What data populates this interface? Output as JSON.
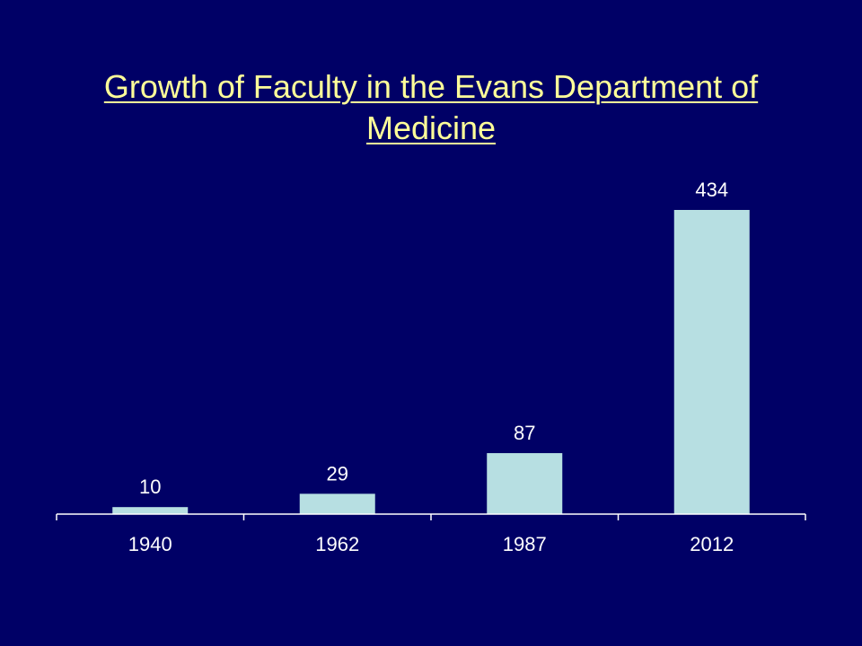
{
  "slide": {
    "background": "#000066",
    "title_color": "#ffff99"
  },
  "chart_data": {
    "type": "bar",
    "title": "Growth of Faculty in the Evans Department of Medicine",
    "xlabel": "",
    "ylabel": "",
    "categories": [
      "1940",
      "1962",
      "1987",
      "2012"
    ],
    "values": [
      10,
      29,
      87,
      434
    ],
    "data_labels": [
      "10",
      "29",
      "87",
      "434"
    ],
    "ylim": [
      0,
      450
    ],
    "grid": false,
    "legend": "none",
    "bar_color": "#b7dfe2"
  }
}
